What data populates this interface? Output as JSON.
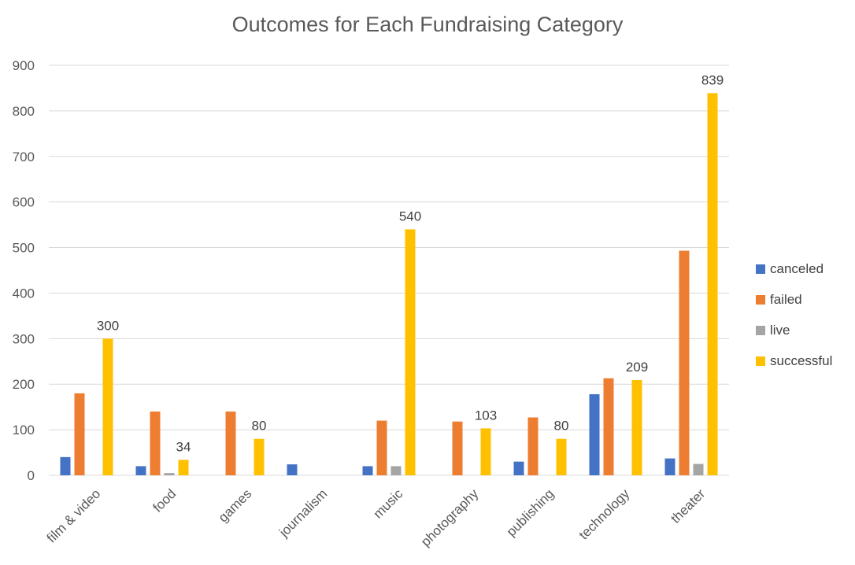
{
  "chart_data": {
    "type": "bar",
    "title": "Outcomes for Each Fundraising Category",
    "xlabel": "",
    "ylabel": "",
    "ylim": [
      0,
      900
    ],
    "yticks": [
      0,
      100,
      200,
      300,
      400,
      500,
      600,
      700,
      800,
      900
    ],
    "categories": [
      "film & video",
      "food",
      "games",
      "journalism",
      "music",
      "photography",
      "publishing",
      "technology",
      "theater"
    ],
    "series": [
      {
        "name": "canceled",
        "color": "#4472C4",
        "values": [
          40,
          20,
          0,
          24,
          20,
          0,
          30,
          178,
          37
        ]
      },
      {
        "name": "failed",
        "color": "#ED7D31",
        "values": [
          180,
          140,
          140,
          0,
          120,
          118,
          127,
          213,
          493
        ]
      },
      {
        "name": "live",
        "color": "#A5A5A5",
        "values": [
          0,
          5,
          0,
          0,
          20,
          0,
          0,
          0,
          25
        ]
      },
      {
        "name": "successful",
        "color": "#FFC000",
        "values": [
          300,
          34,
          80,
          0,
          540,
          103,
          80,
          209,
          839
        ]
      }
    ],
    "data_labels": {
      "series": "successful",
      "values": [
        "300",
        "34",
        "80",
        "",
        "540",
        "103",
        "80",
        "209",
        "839"
      ]
    },
    "grid": true,
    "legend_position": "right"
  }
}
